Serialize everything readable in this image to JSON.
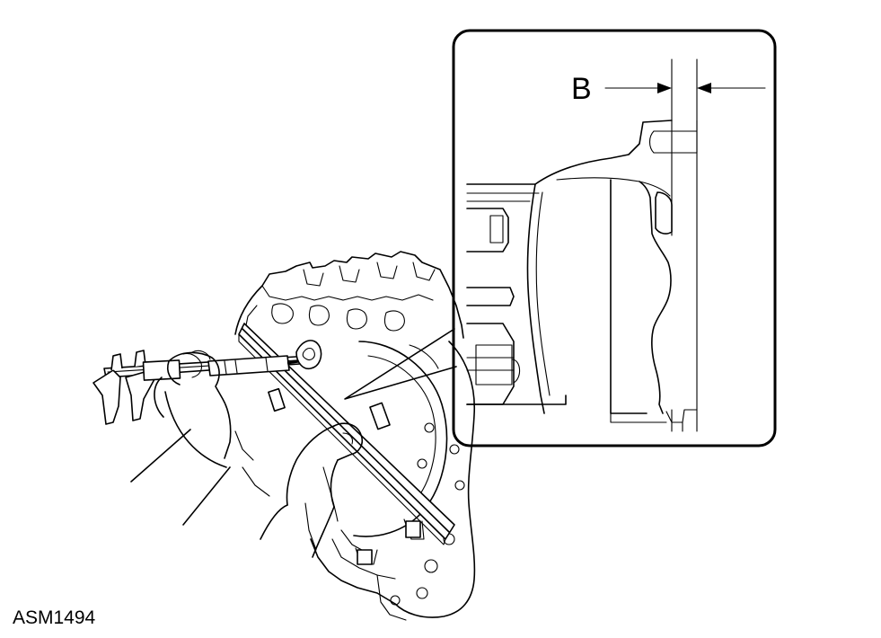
{
  "figure": {
    "figure_id": "ASM1494",
    "dimension_label": "B"
  }
}
